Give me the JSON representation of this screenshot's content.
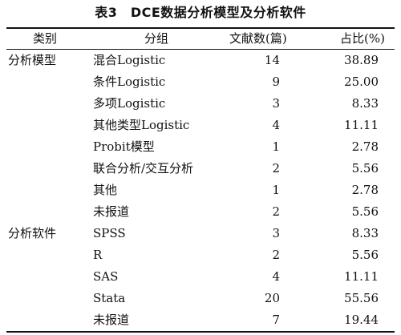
{
  "caption": "表3　DCE数据分析模型及分析软件",
  "columns": {
    "category": "类别",
    "group": "分组",
    "count": "文献数(篇)",
    "percent": "占比(%)"
  },
  "rows": [
    {
      "category": "分析模型",
      "group": "混合Logistic",
      "count": "14",
      "percent": "38.89"
    },
    {
      "category": "",
      "group": "条件Logistic",
      "count": "9",
      "percent": "25.00"
    },
    {
      "category": "",
      "group": "多项Logistic",
      "count": "3",
      "percent": "8.33"
    },
    {
      "category": "",
      "group": "其他类型Logistic",
      "count": "4",
      "percent": "11.11"
    },
    {
      "category": "",
      "group": "Probit模型",
      "count": "1",
      "percent": "2.78"
    },
    {
      "category": "",
      "group": "联合分析/交互分析",
      "count": "2",
      "percent": "5.56"
    },
    {
      "category": "",
      "group": "其他",
      "count": "1",
      "percent": "2.78"
    },
    {
      "category": "",
      "group": "未报道",
      "count": "2",
      "percent": "5.56"
    },
    {
      "category": "分析软件",
      "group": "SPSS",
      "count": "3",
      "percent": "8.33"
    },
    {
      "category": "",
      "group": "R",
      "count": "2",
      "percent": "5.56"
    },
    {
      "category": "",
      "group": "SAS",
      "count": "4",
      "percent": "11.11"
    },
    {
      "category": "",
      "group": "Stata",
      "count": "20",
      "percent": "55.56"
    },
    {
      "category": "",
      "group": "未报道",
      "count": "7",
      "percent": "19.44"
    }
  ]
}
